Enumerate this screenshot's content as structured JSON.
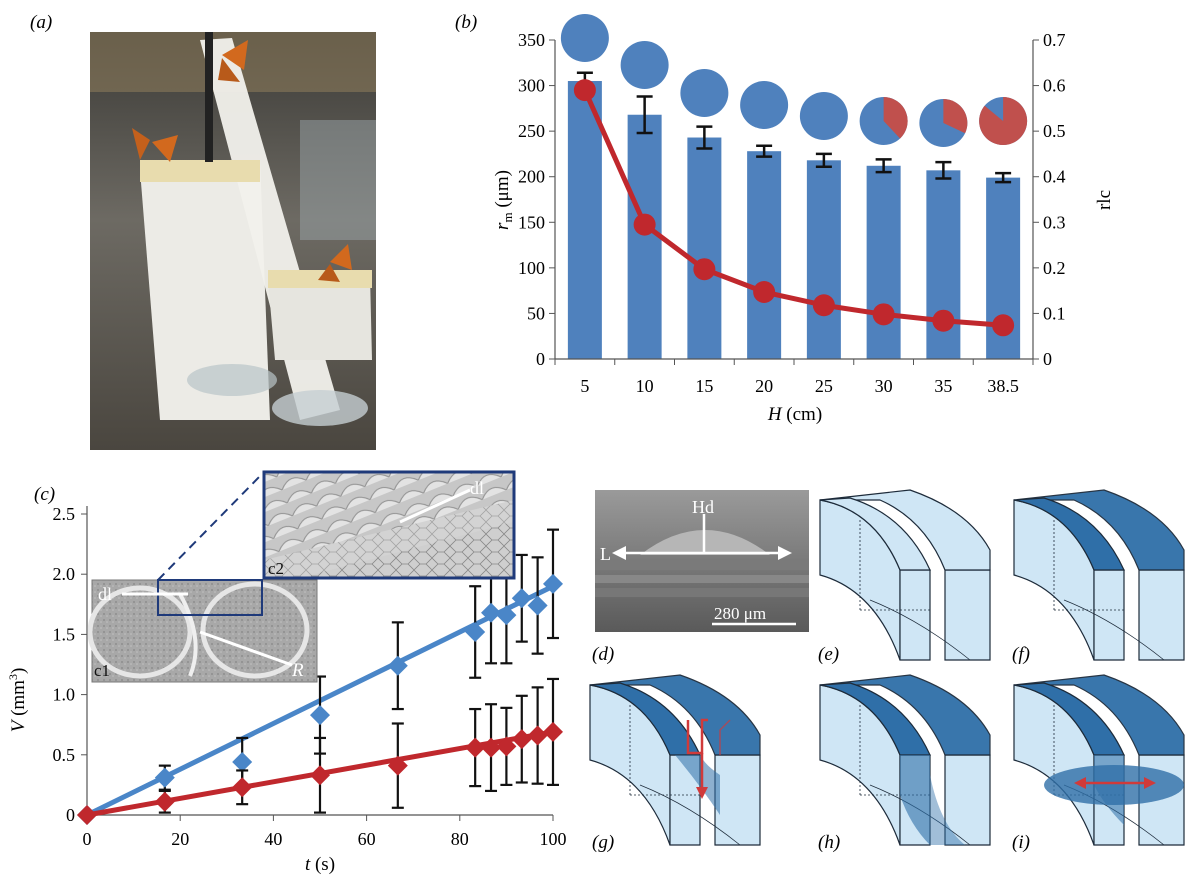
{
  "panel_labels": {
    "a": "(a)",
    "b": "(b)",
    "c": "(c)",
    "d": "(d)",
    "e": "(e)",
    "f": "(f)",
    "g": "(g)",
    "h": "(h)",
    "i": "(i)"
  },
  "colors": {
    "bar_blue": "#4f81bd",
    "line_red": "#c0282d",
    "line_blue": "#4a86c8",
    "pie_red": "#c0504d",
    "block_light": "#cfe6f5",
    "block_dark": "#2f6fa8",
    "arrow_red": "#d03a3a"
  },
  "photo_icon": "butterfly-apparatus-photo",
  "chart_data": [
    {
      "type": "bar",
      "categories": [
        "5",
        "10",
        "15",
        "20",
        "25",
        "30",
        "35",
        "38.5"
      ],
      "series": [
        {
          "values": [
            305,
            268,
            243,
            228,
            218,
            212,
            207,
            199
          ],
          "errors": [
            9,
            20,
            12,
            6,
            7,
            7,
            9,
            5
          ]
        }
      ],
      "secondary_series": [
        {
          "values": [
            0.59,
            0.295,
            0.197,
            0.147,
            0.118,
            0.098,
            0.084,
            0.074
          ]
        }
      ],
      "pie_red_fraction": [
        0,
        0,
        0,
        0,
        0,
        0.38,
        0.32,
        0.86
      ],
      "xlabel_italic": "H",
      "xlabel_rest": " (cm)",
      "ylabel_italic": "r",
      "ylabel_sub": "m",
      "ylabel_rest": " (μm)",
      "y2label": "rlc",
      "ylim": [
        0,
        350
      ],
      "y2lim": [
        0,
        0.7
      ],
      "yticks": [
        "0",
        "50",
        "100",
        "150",
        "200",
        "250",
        "300",
        "350"
      ],
      "y2ticks": [
        "0",
        "0.1",
        "0.2",
        "0.3",
        "0.4",
        "0.5",
        "0.6",
        "0.7"
      ]
    },
    {
      "type": "scatter",
      "series": [
        {
          "x": [
            0,
            16.7,
            33.3,
            50,
            66.7,
            83.3,
            86.7,
            90,
            93.3,
            96.7,
            100
          ],
          "y": [
            0,
            0.31,
            0.44,
            0.83,
            1.24,
            1.52,
            1.68,
            1.66,
            1.8,
            1.74,
            1.92
          ],
          "errors": [
            0,
            0.1,
            0.2,
            0.32,
            0.36,
            0.38,
            0.42,
            0.4,
            0.36,
            0.4,
            0.45
          ],
          "fit": [
            [
              0,
              0
            ],
            [
              100,
              1.9
            ]
          ]
        },
        {
          "x": [
            0,
            16.7,
            33.3,
            50,
            66.7,
            83.3,
            86.7,
            90,
            93.3,
            96.7,
            100
          ],
          "y": [
            0,
            0.11,
            0.23,
            0.33,
            0.41,
            0.56,
            0.56,
            0.57,
            0.63,
            0.66,
            0.69
          ],
          "errors": [
            0,
            0.09,
            0.14,
            0.31,
            0.35,
            0.32,
            0.36,
            0.32,
            0.36,
            0.4,
            0.44
          ],
          "fit": [
            [
              0,
              0
            ],
            [
              100,
              0.69
            ]
          ]
        }
      ],
      "xlabel_italic": "t",
      "xlabel_rest": " (s)",
      "ylabel_italic": "V",
      "ylabel_rest": " (mm",
      "ylabel_sup": "3",
      "ylabel_close": ")",
      "xlim": [
        0,
        100
      ],
      "ylim": [
        0,
        2.5
      ],
      "xticks": [
        "0",
        "20",
        "40",
        "60",
        "80",
        "100"
      ],
      "yticks": [
        "0",
        "0.5",
        "1.0",
        "1.5",
        "2.0",
        "2.5"
      ]
    }
  ],
  "insets": {
    "c1_label": "c1",
    "c2_label": "c2",
    "dl_label_c1": "dl",
    "dl_label_c2": "dl",
    "r_label": "R"
  },
  "micrograph_d": {
    "hd_label": "Hd",
    "l_label": "L",
    "scale_label": "280 μm"
  }
}
